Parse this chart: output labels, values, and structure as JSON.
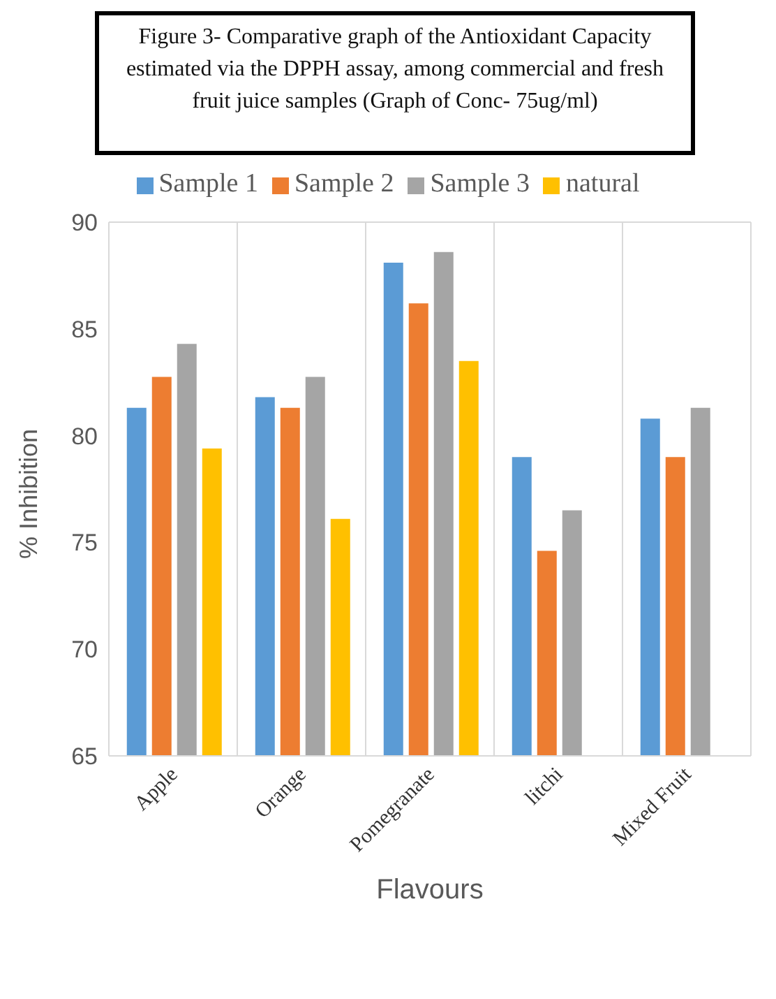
{
  "chart_data": {
    "type": "bar",
    "title": "Figure 3- Comparative graph of the Antioxidant Capacity estimated via the DPPH assay, among commercial and fresh fruit juice samples (Graph of Conc- 75ug/ml)",
    "xlabel": "Flavours",
    "ylabel": "% Inhibition",
    "categories": [
      "Apple",
      "Orange",
      "Pomegranate",
      "litchi",
      "Mixed Fruit"
    ],
    "series": [
      {
        "name": "Sample 1",
        "color": "#5b9bd5",
        "values": [
          81.3,
          81.8,
          88.1,
          79.0,
          80.8
        ]
      },
      {
        "name": "Sample 2",
        "color": "#ed7d31",
        "values": [
          82.75,
          81.3,
          86.2,
          74.6,
          79.0
        ]
      },
      {
        "name": "Sample 3",
        "color": "#a5a5a5",
        "values": [
          84.3,
          82.75,
          88.6,
          76.5,
          81.3
        ]
      },
      {
        "name": "natural",
        "color": "#ffc000",
        "values": [
          79.4,
          76.1,
          83.5,
          null,
          null
        ]
      }
    ],
    "ylim": [
      65,
      90
    ],
    "yticks": [
      65,
      70,
      75,
      80,
      85,
      90
    ],
    "grid": true,
    "legend": "top"
  }
}
